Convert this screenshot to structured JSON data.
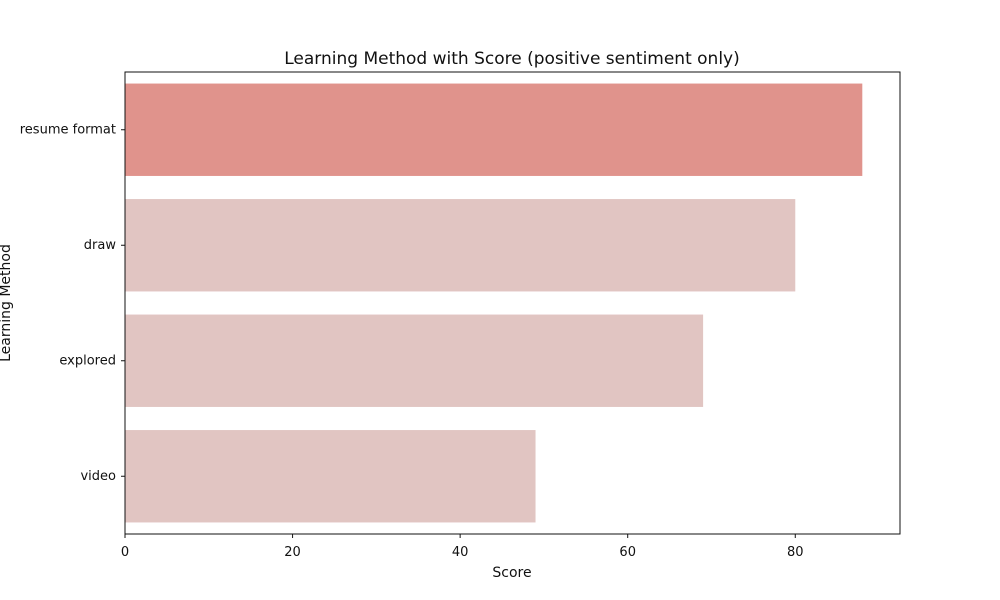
{
  "chart_data": {
    "type": "bar",
    "orientation": "horizontal",
    "title": "Learning Method with Score (positive sentiment only)",
    "xlabel": "Score",
    "ylabel": "Learning Method",
    "categories": [
      "resume format",
      "draw",
      "explored",
      "video"
    ],
    "values": [
      88,
      80,
      69,
      49
    ],
    "xlim": [
      0,
      92.5
    ],
    "xticks": [
      0,
      20,
      40,
      60,
      80
    ],
    "grid": false,
    "legend": "none",
    "colors": {
      "highlight": "#e0938c",
      "default": "#e1c5c2"
    },
    "highlight_index": 0
  }
}
